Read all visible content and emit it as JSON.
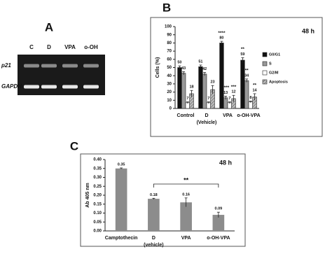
{
  "panel_labels": [
    "A",
    "B",
    "C"
  ],
  "gel": {
    "lanes": [
      "C",
      "D",
      "VPA",
      "o-OH"
    ],
    "rows": [
      "p21",
      "GAPDH"
    ]
  },
  "chart_data": [
    {
      "type": "grouped_bar",
      "title": "48 h",
      "y_label": "Cells (%)",
      "categories": [
        "Control",
        "D",
        "VPA",
        "o-OH-VPA"
      ],
      "category_sublabels": [
        null,
        "(Vehicle)",
        null,
        null
      ],
      "series": [
        {
          "name": "G0/G1",
          "color": "#111111",
          "pattern": "solid",
          "values": [
            50,
            51,
            80,
            59
          ],
          "errors": [
            2,
            2,
            2,
            3
          ],
          "significance": [
            null,
            null,
            "****",
            "**"
          ]
        },
        {
          "name": "S",
          "color": "#999999",
          "pattern": "solid",
          "values": [
            43,
            42,
            13,
            34
          ],
          "errors": [
            2,
            2,
            2,
            2
          ],
          "significance": [
            null,
            null,
            "****",
            "**"
          ]
        },
        {
          "name": "G2/M",
          "color": "#ffffff",
          "pattern": "solid",
          "values": [
            7,
            7,
            7,
            8
          ],
          "errors": [
            1,
            1,
            1,
            1
          ],
          "significance": [
            null,
            null,
            null,
            null
          ]
        },
        {
          "name": "Apoptosis",
          "color": "#9a9a9a",
          "pattern": "hatch",
          "values": [
            18,
            23,
            12,
            14
          ],
          "errors": [
            4,
            5,
            4,
            4
          ],
          "significance": [
            null,
            null,
            "***",
            "**"
          ]
        }
      ],
      "ylim": [
        0,
        100
      ],
      "yticks": [
        0,
        10,
        20,
        30,
        40,
        50,
        60,
        70,
        80,
        90,
        100
      ],
      "legend": "right"
    },
    {
      "type": "bar",
      "title": "48 h",
      "y_label": "Ab 405 nm",
      "categories": [
        "Camptothecin",
        "D",
        "VPA",
        "o-OH-VPA"
      ],
      "category_sublabels": [
        null,
        "(vehicle)",
        null,
        null
      ],
      "values": [
        0.35,
        0.18,
        0.16,
        0.09
      ],
      "value_labels": [
        "0.35",
        "0.18",
        "0.16",
        "0.09"
      ],
      "errors": [
        0.003,
        0.003,
        0.025,
        0.015
      ],
      "color": "#8c8c8c",
      "bracket": {
        "label": "**",
        "from": 1,
        "to": 3
      },
      "ylim": [
        0,
        0.4
      ],
      "yticks": [
        {
          "value": 0,
          "label": "0.00"
        },
        {
          "value": 0.05,
          "label": "0.05"
        },
        {
          "value": 0.1,
          "label": "0.10"
        },
        {
          "value": 0.15,
          "label": "0.15"
        },
        {
          "value": 0.2,
          "label": "0.20"
        },
        {
          "value": 0.25,
          "label": "0.25"
        },
        {
          "value": 0.3,
          "label": "0.30"
        },
        {
          "value": 0.35,
          "label": "0.35"
        },
        {
          "value": 0.4,
          "label": "0.40"
        }
      ]
    }
  ]
}
